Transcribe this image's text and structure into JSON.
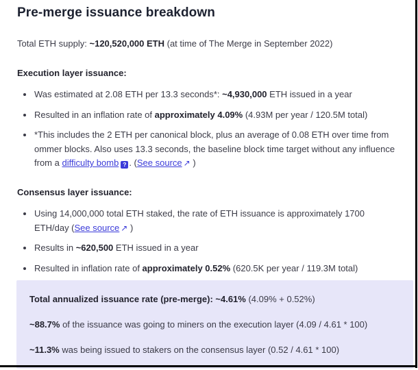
{
  "colors": {
    "link_accent": "#3c3cd9",
    "highlight_background": "#e7e6f9",
    "body_text": "#3b3b47"
  },
  "icons": {
    "tooltip_glyph": "?",
    "external_link_arrow": "↗"
  },
  "page": {
    "title": "Pre-merge issuance breakdown"
  },
  "supply": {
    "pre": "Total ETH supply: ",
    "bold": "~120,520,000 ETH",
    "post": " (at time of The Merge in September 2022)"
  },
  "execution": {
    "heading": "Execution layer issuance:",
    "bullet1": {
      "pre": "Was estimated at 2.08 ETH per 13.3 seconds*: ",
      "bold": "~4,930,000",
      "post": " ETH issued in a year"
    },
    "bullet2": {
      "pre": "Resulted in an inflation rate of ",
      "bold": "approximately 4.09%",
      "post": " (4.93M per year / 120.5M total)"
    },
    "bullet3": {
      "pre": "*This includes the 2 ETH per canonical block, plus an average of 0.08 ETH over time from ommer blocks. Also uses 13.3 seconds, the baseline block time target without any influence from a ",
      "link_difficulty_bomb": "difficulty bomb",
      "mid": ". (",
      "link_see_source": "See source",
      "post": " )"
    }
  },
  "consensus": {
    "heading": "Consensus layer issuance:",
    "bullet1": {
      "pre": "Using 14,000,000 total ETH staked, the rate of ETH issuance is approximately 1700 ETH/day (",
      "link_see_source": "See source",
      "post": " )"
    },
    "bullet2": {
      "pre": "Results in ",
      "bold": "~620,500",
      "post": " ETH issued in a year"
    },
    "bullet3": {
      "pre": "Resulted in inflation rate of ",
      "bold": "approximately 0.52%",
      "post": " (620.5K per year / 119.3M total)"
    }
  },
  "summary": {
    "line1": {
      "bold": "Total annualized issuance rate (pre-merge): ~4.61%",
      "rest": " (4.09% + 0.52%)"
    },
    "line2": {
      "bold": "~88.7%",
      "rest": " of the issuance was going to miners on the execution layer (4.09 / 4.61 * 100)"
    },
    "line3": {
      "bold": "~11.3%",
      "rest": " was being issued to stakers on the consensus layer (0.52 / 4.61 * 100)"
    }
  }
}
